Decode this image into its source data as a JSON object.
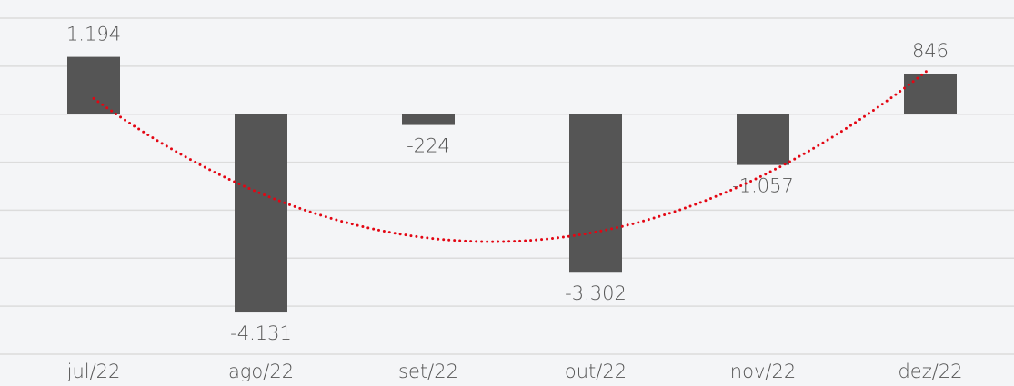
{
  "chart_data": {
    "type": "bar",
    "categories": [
      "jul/22",
      "ago/22",
      "set/22",
      "out/22",
      "nov/22",
      "dez/22"
    ],
    "values": [
      1194,
      -4131,
      -224,
      -3302,
      -1057,
      846
    ],
    "value_labels": [
      "1.194",
      "-4.131",
      "-224",
      "-3.302",
      "-1.057",
      "846"
    ],
    "color": "#555555",
    "ylim": [
      -5000,
      2000
    ],
    "yticks": [
      -5000,
      -4000,
      -3000,
      -2000,
      -1000,
      0,
      1000,
      2000
    ],
    "grid": true,
    "trendline": {
      "type": "polynomial",
      "order": 2,
      "color": "#e30613"
    }
  }
}
